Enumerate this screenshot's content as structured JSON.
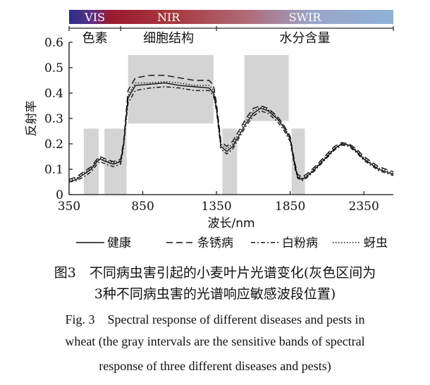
{
  "chart_data": {
    "type": "line",
    "xlabel": "波长/nm",
    "ylabel": "反射率",
    "xlim": [
      350,
      2550
    ],
    "ylim": [
      0,
      0.6
    ],
    "xticks": [
      350,
      850,
      1350,
      1850,
      2350
    ],
    "yticks": [
      0,
      0.1,
      0.2,
      0.3,
      0.4,
      0.5,
      0.6
    ],
    "ytick_labels": [
      "0",
      "0.1",
      "0.2",
      "0.3",
      "0.4",
      "0.5",
      "0.6"
    ],
    "spectrum_bar": [
      {
        "label": "VIS",
        "range": [
          350,
          700
        ]
      },
      {
        "label": "NIR",
        "range": [
          700,
          1350
        ]
      },
      {
        "label": "SWIR",
        "range": [
          1350,
          2550
        ]
      }
    ],
    "region_labels": [
      {
        "label": "色素",
        "range": [
          350,
          700
        ]
      },
      {
        "label": "细胞结构",
        "range": [
          700,
          1350
        ]
      },
      {
        "label": "水分含量",
        "range": [
          1350,
          2550
        ]
      }
    ],
    "gray_bands": [
      {
        "x": [
          450,
          550
        ],
        "y": [
          0,
          0.26
        ]
      },
      {
        "x": [
          590,
          740
        ],
        "y": [
          0,
          0.26
        ]
      },
      {
        "x": [
          750,
          1330
        ],
        "y": [
          0.28,
          0.55
        ]
      },
      {
        "x": [
          1390,
          1490
        ],
        "y": [
          0,
          0.26
        ]
      },
      {
        "x": [
          1540,
          1840
        ],
        "y": [
          0.29,
          0.55
        ]
      },
      {
        "x": [
          1860,
          1950
        ],
        "y": [
          0,
          0.26
        ]
      }
    ],
    "series": [
      {
        "name": "健康",
        "style": "solid",
        "x": [
          350,
          400,
          450,
          500,
          540,
          560,
          600,
          650,
          700,
          720,
          750,
          800,
          900,
          1000,
          1100,
          1200,
          1300,
          1330,
          1350,
          1380,
          1420,
          1460,
          1500,
          1550,
          1600,
          1650,
          1700,
          1760,
          1800,
          1850,
          1880,
          1900,
          1930,
          1960,
          2000,
          2050,
          2100,
          2150,
          2200,
          2250,
          2300,
          2350,
          2400,
          2450,
          2500,
          2550
        ],
        "y": [
          0.05,
          0.06,
          0.08,
          0.1,
          0.13,
          0.14,
          0.13,
          0.12,
          0.13,
          0.2,
          0.38,
          0.43,
          0.435,
          0.44,
          0.43,
          0.425,
          0.42,
          0.4,
          0.34,
          0.19,
          0.17,
          0.19,
          0.23,
          0.28,
          0.32,
          0.34,
          0.33,
          0.3,
          0.27,
          0.22,
          0.12,
          0.07,
          0.06,
          0.07,
          0.09,
          0.12,
          0.15,
          0.18,
          0.2,
          0.195,
          0.17,
          0.14,
          0.12,
          0.1,
          0.09,
          0.08
        ]
      },
      {
        "name": "条锈病",
        "style": "dashed",
        "x": [
          350,
          400,
          450,
          500,
          540,
          560,
          600,
          650,
          700,
          720,
          750,
          800,
          900,
          1000,
          1100,
          1200,
          1300,
          1330,
          1350,
          1380,
          1420,
          1460,
          1500,
          1550,
          1600,
          1650,
          1700,
          1760,
          1800,
          1850,
          1880,
          1900,
          1930,
          1960,
          2000,
          2050,
          2100,
          2150,
          2200,
          2250,
          2300,
          2350,
          2400,
          2450,
          2500,
          2550
        ],
        "y": [
          0.06,
          0.07,
          0.09,
          0.11,
          0.14,
          0.15,
          0.14,
          0.13,
          0.14,
          0.21,
          0.41,
          0.46,
          0.47,
          0.47,
          0.46,
          0.45,
          0.45,
          0.43,
          0.36,
          0.21,
          0.19,
          0.21,
          0.25,
          0.3,
          0.34,
          0.35,
          0.34,
          0.31,
          0.28,
          0.23,
          0.13,
          0.08,
          0.07,
          0.08,
          0.1,
          0.13,
          0.16,
          0.19,
          0.205,
          0.2,
          0.18,
          0.15,
          0.13,
          0.11,
          0.1,
          0.09
        ]
      },
      {
        "name": "白粉病",
        "style": "dash-dot",
        "x": [
          350,
          400,
          450,
          500,
          540,
          560,
          600,
          650,
          700,
          720,
          750,
          800,
          900,
          1000,
          1100,
          1200,
          1300,
          1330,
          1350,
          1380,
          1420,
          1460,
          1500,
          1550,
          1600,
          1650,
          1700,
          1760,
          1800,
          1850,
          1880,
          1900,
          1930,
          1960,
          2000,
          2050,
          2100,
          2150,
          2200,
          2250,
          2300,
          2350,
          2400,
          2450,
          2500,
          2550
        ],
        "y": [
          0.05,
          0.055,
          0.07,
          0.09,
          0.12,
          0.13,
          0.12,
          0.11,
          0.12,
          0.19,
          0.36,
          0.41,
          0.42,
          0.425,
          0.42,
          0.41,
          0.41,
          0.39,
          0.33,
          0.18,
          0.16,
          0.18,
          0.22,
          0.27,
          0.31,
          0.33,
          0.32,
          0.29,
          0.26,
          0.21,
          0.11,
          0.065,
          0.055,
          0.065,
          0.085,
          0.115,
          0.145,
          0.175,
          0.195,
          0.19,
          0.165,
          0.135,
          0.115,
          0.095,
          0.085,
          0.075
        ]
      },
      {
        "name": "蚜虫",
        "style": "dotted",
        "x": [
          350,
          400,
          450,
          500,
          540,
          560,
          600,
          650,
          700,
          720,
          750,
          800,
          900,
          1000,
          1100,
          1200,
          1300,
          1330,
          1350,
          1380,
          1420,
          1460,
          1500,
          1550,
          1600,
          1650,
          1700,
          1760,
          1800,
          1850,
          1880,
          1900,
          1930,
          1960,
          2000,
          2050,
          2100,
          2150,
          2200,
          2250,
          2300,
          2350,
          2400,
          2450,
          2500,
          2550
        ],
        "y": [
          0.055,
          0.065,
          0.085,
          0.105,
          0.135,
          0.145,
          0.135,
          0.125,
          0.135,
          0.2,
          0.39,
          0.44,
          0.44,
          0.445,
          0.44,
          0.43,
          0.43,
          0.41,
          0.345,
          0.2,
          0.18,
          0.2,
          0.24,
          0.29,
          0.33,
          0.345,
          0.335,
          0.305,
          0.275,
          0.225,
          0.125,
          0.075,
          0.065,
          0.075,
          0.095,
          0.125,
          0.155,
          0.185,
          0.2,
          0.195,
          0.175,
          0.145,
          0.125,
          0.105,
          0.095,
          0.085
        ]
      }
    ]
  },
  "caption": {
    "zh_line1": "图3　不同病虫害引起的小麦叶片光谱变化(灰色区间为",
    "zh_line2": "3种不同病虫害的光谱响应敏感波段位置)",
    "en_line1": "Fig. 3　Spectral response of different diseases and pests in",
    "en_line2": "wheat (the gray intervals are the sensitive bands of spectral",
    "en_line3": "response of three different diseases and pests)"
  }
}
